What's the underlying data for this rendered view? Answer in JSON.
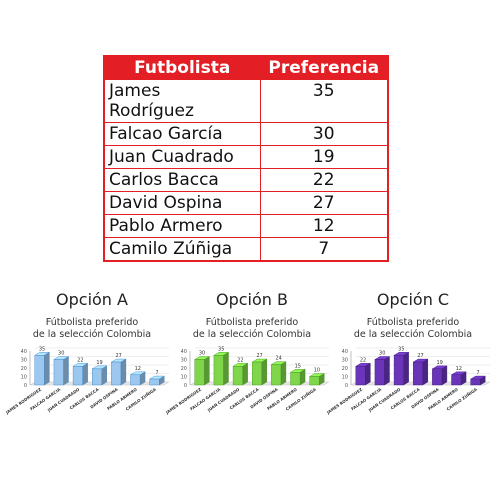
{
  "table": {
    "headers": [
      "Futbolista",
      "Preferencia"
    ],
    "rows": [
      {
        "name_lines": [
          "James",
          "Rodríguez"
        ],
        "value": "35"
      },
      {
        "name_lines": [
          "Falcao García"
        ],
        "value": "30"
      },
      {
        "name_lines": [
          "Juan Cuadrado"
        ],
        "value": "19"
      },
      {
        "name_lines": [
          "Carlos Bacca"
        ],
        "value": "22"
      },
      {
        "name_lines": [
          "David Ospina"
        ],
        "value": "27"
      },
      {
        "name_lines": [
          "Pablo Armero"
        ],
        "value": "12"
      },
      {
        "name_lines": [
          "Camilo Zúñiga"
        ],
        "value": "7"
      }
    ],
    "border_color": "#e31e24"
  },
  "chart_data": [
    {
      "type": "bar",
      "option_label": "Opción A",
      "title_lines": [
        "Fútbolista preferido",
        "de la selección Colombia"
      ],
      "color": "#9cc8f0",
      "stroke": "#3a7fc8",
      "categories": [
        "JAMES RODRIGUEZ",
        "FALCAO GARCIA",
        "JUAN CUADRADO",
        "CARLOS BACCA",
        "DAVID OSPINA",
        "PABLO ARMERO",
        "CAMILO ZUÑIGA"
      ],
      "values": [
        35,
        30,
        22,
        19,
        27,
        12,
        7
      ],
      "ylim": [
        0,
        40
      ],
      "yticks": [
        0,
        10,
        20,
        30,
        40
      ]
    },
    {
      "type": "bar",
      "option_label": "Opción B",
      "title_lines": [
        "Fútbolista preferido",
        "de la selección Colombia"
      ],
      "color": "#7fd64a",
      "stroke": "#3f8f1c",
      "categories": [
        "JAMES RODRIGUEZ",
        "FALCAO GARCIA",
        "JUAN CUADRADO",
        "CARLOS BACCA",
        "DAVID OSPINA",
        "PABLO ARMERO",
        "CAMILO ZUÑIGA"
      ],
      "values": [
        30,
        35,
        22,
        27,
        24,
        15,
        10
      ],
      "ylim": [
        0,
        40
      ],
      "yticks": [
        0,
        10,
        20,
        30,
        40
      ]
    },
    {
      "type": "bar",
      "option_label": "Opción C",
      "title_lines": [
        "Fútbolista preferido",
        "de la selección Colombia"
      ],
      "color": "#6a35b8",
      "stroke": "#3c1a75",
      "categories": [
        "JAMES RODRIGUEZ",
        "FALCAO GARCIA",
        "JUAN CUADRADO",
        "CARLOS BACCA",
        "DAVID OSPINA",
        "PABLO ARMERO",
        "CAMILO ZUÑIGA"
      ],
      "values": [
        22,
        30,
        35,
        27,
        19,
        12,
        7
      ],
      "ylim": [
        0,
        40
      ],
      "yticks": [
        0,
        10,
        20,
        30,
        40
      ]
    }
  ]
}
